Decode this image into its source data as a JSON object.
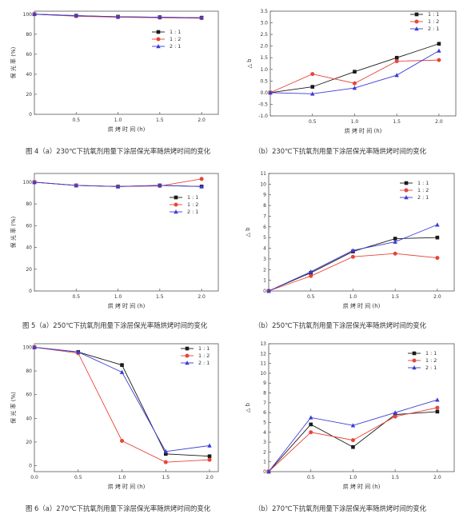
{
  "figures": [
    {
      "id": "fig4",
      "caption_a": "图 4（a）230℃下抗氧剂用量下涂层保光率随烘烤时间的变化",
      "caption_b": "（b）230℃下抗氧剂用量下涂层保光率随烘烤时间的变化"
    },
    {
      "id": "fig5",
      "caption_a": "图 5（a）250℃下抗氧剂用量下涂层保光率随烘烤时间的变化",
      "caption_b": "（b）250℃下抗氧剂用量下涂层保光率随烘烤时间的变化"
    },
    {
      "id": "fig6",
      "caption_a": "图 6（a）270℃下抗氧剂用量下涂层保光率随烘烤时间的变化",
      "caption_b": "（b）270℃下抗氧剂用量下涂层保光率随烘烤时间的变化"
    }
  ],
  "series_colors": {
    "1:1": "#1a1a1a",
    "1:2": "#e8453c",
    "2:1": "#3b3bd6"
  },
  "chart_data": [
    {
      "id": "fig4a",
      "type": "line",
      "xlabel": "烘 烤 时 间 (h)",
      "ylabel": "保 光 率 (%)",
      "xlim": [
        0,
        2.2
      ],
      "ylim": [
        0,
        103
      ],
      "xticks": [
        "0.5",
        "1.0",
        "1.5",
        "2.0"
      ],
      "xtick_values": [
        0.5,
        1.0,
        1.5,
        2.0
      ],
      "yticks": [
        "0",
        "20",
        "40",
        "60",
        "80",
        "100"
      ],
      "ytick_values": [
        0,
        20,
        40,
        60,
        80,
        100
      ],
      "legend": "right",
      "x": [
        0,
        0.5,
        1.0,
        1.5,
        2.0
      ],
      "series": [
        {
          "name": "1 : 1",
          "values": [
            100,
            98.5,
            97.5,
            97,
            96.5
          ]
        },
        {
          "name": "1 : 2",
          "values": [
            100,
            98,
            97,
            96.5,
            96
          ]
        },
        {
          "name": "2 : 1",
          "values": [
            100,
            98.5,
            97.5,
            97,
            96.5
          ]
        }
      ]
    },
    {
      "id": "fig4b",
      "type": "line",
      "xlabel": "烘 烤 时 间 (h)",
      "ylabel": "△ b",
      "xlim": [
        0,
        2.2
      ],
      "ylim": [
        -1.0,
        3.5
      ],
      "xticks": [
        "0.5",
        "1.0",
        "1.5",
        "2.0"
      ],
      "xtick_values": [
        0.5,
        1.0,
        1.5,
        2.0
      ],
      "yticks": [
        "-1.0",
        "-0.5",
        "0.0",
        "0.5",
        "1.0",
        "1.5",
        "2.0",
        "2.5",
        "3.0",
        "3.5"
      ],
      "ytick_values": [
        -1.0,
        -0.5,
        0.0,
        0.5,
        1.0,
        1.5,
        2.0,
        2.5,
        3.0,
        3.5
      ],
      "legend": "top-right",
      "x": [
        0,
        0.5,
        1.0,
        1.5,
        2.0
      ],
      "series": [
        {
          "name": "1 : 1",
          "values": [
            0,
            0.25,
            0.9,
            1.5,
            2.1
          ]
        },
        {
          "name": "1 : 2",
          "values": [
            0,
            0.8,
            0.4,
            1.35,
            1.4
          ]
        },
        {
          "name": "2 : 1",
          "values": [
            0,
            -0.05,
            0.2,
            0.75,
            1.8
          ]
        }
      ]
    },
    {
      "id": "fig5a",
      "type": "line",
      "xlabel": "烘 烤 时 间 (h)",
      "ylabel": "保 光 率 (%)",
      "xlim": [
        0,
        2.2
      ],
      "ylim": [
        0,
        108
      ],
      "xticks": [
        "0.5",
        "1.0",
        "1.5",
        "2.0"
      ],
      "xtick_values": [
        0.5,
        1.0,
        1.5,
        2.0
      ],
      "yticks": [
        "0",
        "20",
        "40",
        "60",
        "80",
        "100"
      ],
      "ytick_values": [
        0,
        20,
        40,
        60,
        80,
        100
      ],
      "legend": "right",
      "x": [
        0,
        0.5,
        1.0,
        1.5,
        2.0
      ],
      "series": [
        {
          "name": "1 : 1",
          "values": [
            100,
            97,
            96,
            97,
            96
          ]
        },
        {
          "name": "1 : 2",
          "values": [
            100,
            97,
            96,
            96.5,
            103
          ]
        },
        {
          "name": "2 : 1",
          "values": [
            100,
            97,
            96,
            97,
            96
          ]
        }
      ]
    },
    {
      "id": "fig5b",
      "type": "line",
      "xlabel": "烘 烤 时 间 (h)",
      "ylabel": "△ b",
      "xlim": [
        0,
        2.2
      ],
      "ylim": [
        0,
        11
      ],
      "xticks": [
        "0.5",
        "1.0",
        "1.5",
        "2.0"
      ],
      "xtick_values": [
        0.5,
        1.0,
        1.5,
        2.0
      ],
      "yticks": [
        "0",
        "1",
        "2",
        "3",
        "4",
        "5",
        "6",
        "7",
        "8",
        "9",
        "10",
        "11"
      ],
      "ytick_values": [
        0,
        1,
        2,
        3,
        4,
        5,
        6,
        7,
        8,
        9,
        10,
        11
      ],
      "legend": "top-right",
      "x": [
        0,
        0.5,
        1.0,
        1.5,
        2.0
      ],
      "series": [
        {
          "name": "1 : 1",
          "values": [
            0,
            1.7,
            3.7,
            4.9,
            5.0
          ]
        },
        {
          "name": "1 : 2",
          "values": [
            0,
            1.4,
            3.2,
            3.5,
            3.1
          ]
        },
        {
          "name": "2 : 1",
          "values": [
            0,
            1.8,
            3.8,
            4.6,
            6.2
          ]
        }
      ]
    },
    {
      "id": "fig6a",
      "type": "line",
      "xlabel": "烘 烤 时 间 (h)",
      "ylabel": "保 光 率 (%)",
      "xlim": [
        0,
        2.1
      ],
      "ylim": [
        -5,
        103
      ],
      "xticks": [
        "0.0",
        "0.5",
        "1.0",
        "1.5",
        "2.0"
      ],
      "xtick_values": [
        0,
        0.5,
        1.0,
        1.5,
        2.0
      ],
      "yticks": [
        "0",
        "20",
        "40",
        "60",
        "80",
        "100"
      ],
      "ytick_values": [
        0,
        20,
        40,
        60,
        80,
        100
      ],
      "legend": "top-right",
      "x": [
        0,
        0.5,
        1.0,
        1.5,
        2.0
      ],
      "series": [
        {
          "name": "1 : 1",
          "values": [
            100,
            96,
            85,
            10,
            8
          ]
        },
        {
          "name": "1 : 2",
          "values": [
            100,
            95,
            21,
            3,
            5
          ]
        },
        {
          "name": "2 : 1",
          "values": [
            100,
            96,
            79,
            12,
            17
          ]
        }
      ]
    },
    {
      "id": "fig6b",
      "type": "line",
      "xlabel": "烘 烤 时 间 (h)",
      "ylabel": "△ b",
      "xlim": [
        0,
        2.2
      ],
      "ylim": [
        0,
        13
      ],
      "xticks": [
        "0.5",
        "1.0",
        "1.5",
        "2.0"
      ],
      "xtick_values": [
        0.5,
        1.0,
        1.5,
        2.0
      ],
      "yticks": [
        "0",
        "1",
        "2",
        "3",
        "4",
        "5",
        "6",
        "7",
        "8",
        "9",
        "10",
        "11",
        "12",
        "13"
      ],
      "ytick_values": [
        0,
        1,
        2,
        3,
        4,
        5,
        6,
        7,
        8,
        9,
        10,
        11,
        12,
        13
      ],
      "legend": "top-right",
      "x": [
        0,
        0.5,
        1.0,
        1.5,
        2.0
      ],
      "series": [
        {
          "name": "1 : 1",
          "values": [
            0,
            4.8,
            2.5,
            5.8,
            6.1
          ]
        },
        {
          "name": "1 : 2",
          "values": [
            0,
            4.0,
            3.2,
            5.6,
            6.5
          ]
        },
        {
          "name": "2 : 1",
          "values": [
            0,
            5.5,
            4.7,
            6.0,
            7.3
          ]
        }
      ]
    }
  ]
}
